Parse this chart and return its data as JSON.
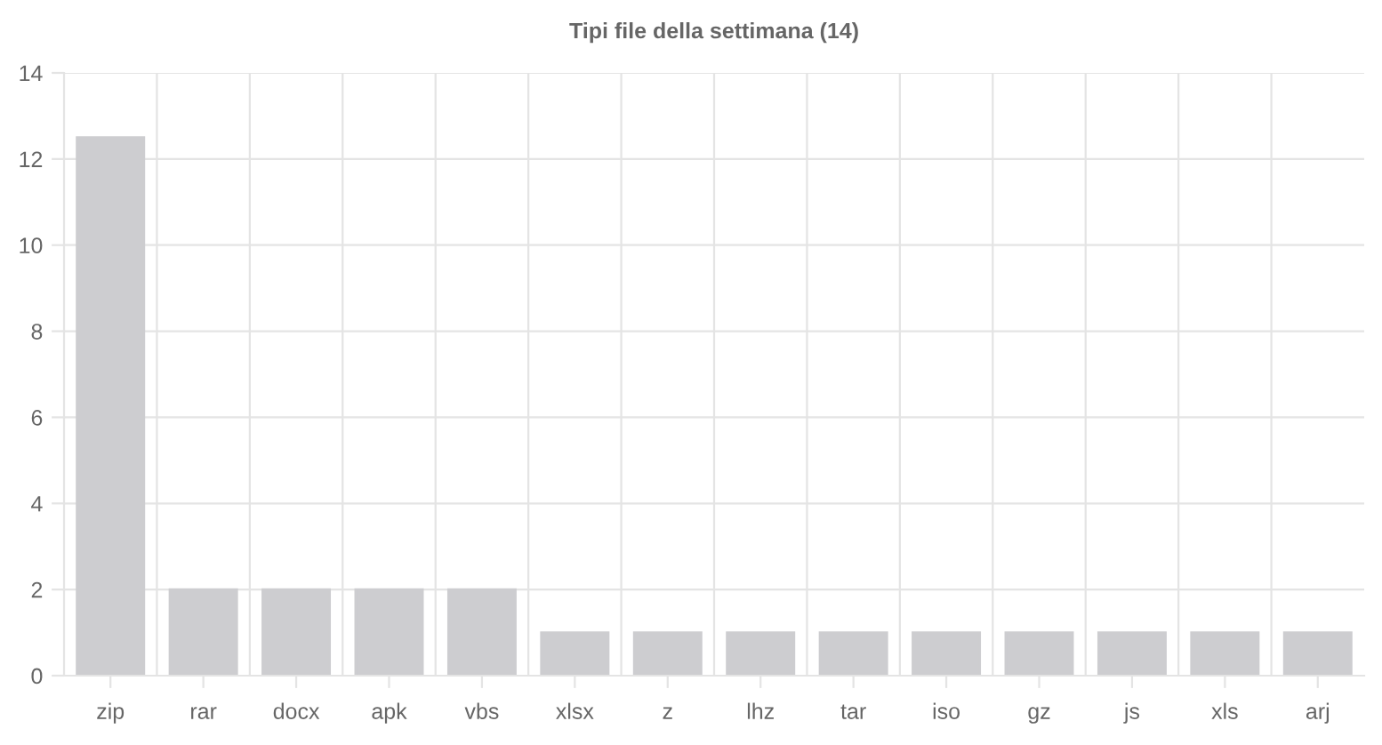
{
  "chart_data": {
    "type": "bar",
    "title": "Tipi file della settimana (14)",
    "categories": [
      "zip",
      "rar",
      "docx",
      "apk",
      "vbs",
      "xlsx",
      "z",
      "lhz",
      "tar",
      "iso",
      "gz",
      "js",
      "xls",
      "arj"
    ],
    "values": [
      12.5,
      2,
      2,
      2,
      2,
      1,
      1,
      1,
      1,
      1,
      1,
      1,
      1,
      1
    ],
    "color": "#cdcdd0",
    "ylim": [
      0,
      14
    ],
    "yticks": [
      0,
      2,
      4,
      6,
      8,
      10,
      12,
      14
    ],
    "grid": true,
    "legend": false
  }
}
